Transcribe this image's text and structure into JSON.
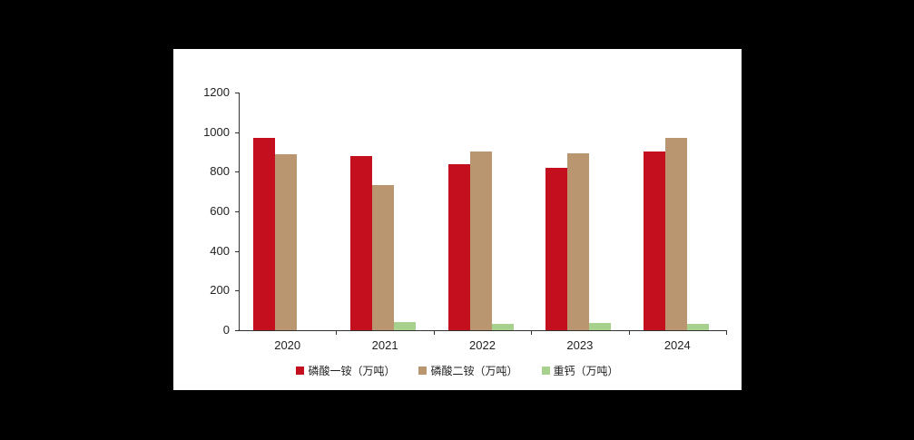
{
  "chart_data": {
    "type": "bar",
    "title": "",
    "xlabel": "",
    "ylabel": "",
    "ylim": [
      0,
      1200
    ],
    "yticks": [
      0,
      200,
      400,
      600,
      800,
      1000,
      1200
    ],
    "categories": [
      "2020",
      "2021",
      "2022",
      "2023",
      "2024"
    ],
    "series": [
      {
        "name": "磷酸一铵（万吨）",
        "color": "#C4101E",
        "values": [
          970,
          881,
          838,
          821,
          904
        ]
      },
      {
        "name": "磷酸二铵（万吨）",
        "color": "#B99670",
        "values": [
          889,
          733,
          902,
          895,
          971
        ]
      },
      {
        "name": "重钙（万吨）",
        "color": "#A9D18E",
        "values": [
          0,
          41,
          31,
          35,
          33
        ]
      }
    ],
    "grid": false,
    "legend_position": "bottom"
  }
}
